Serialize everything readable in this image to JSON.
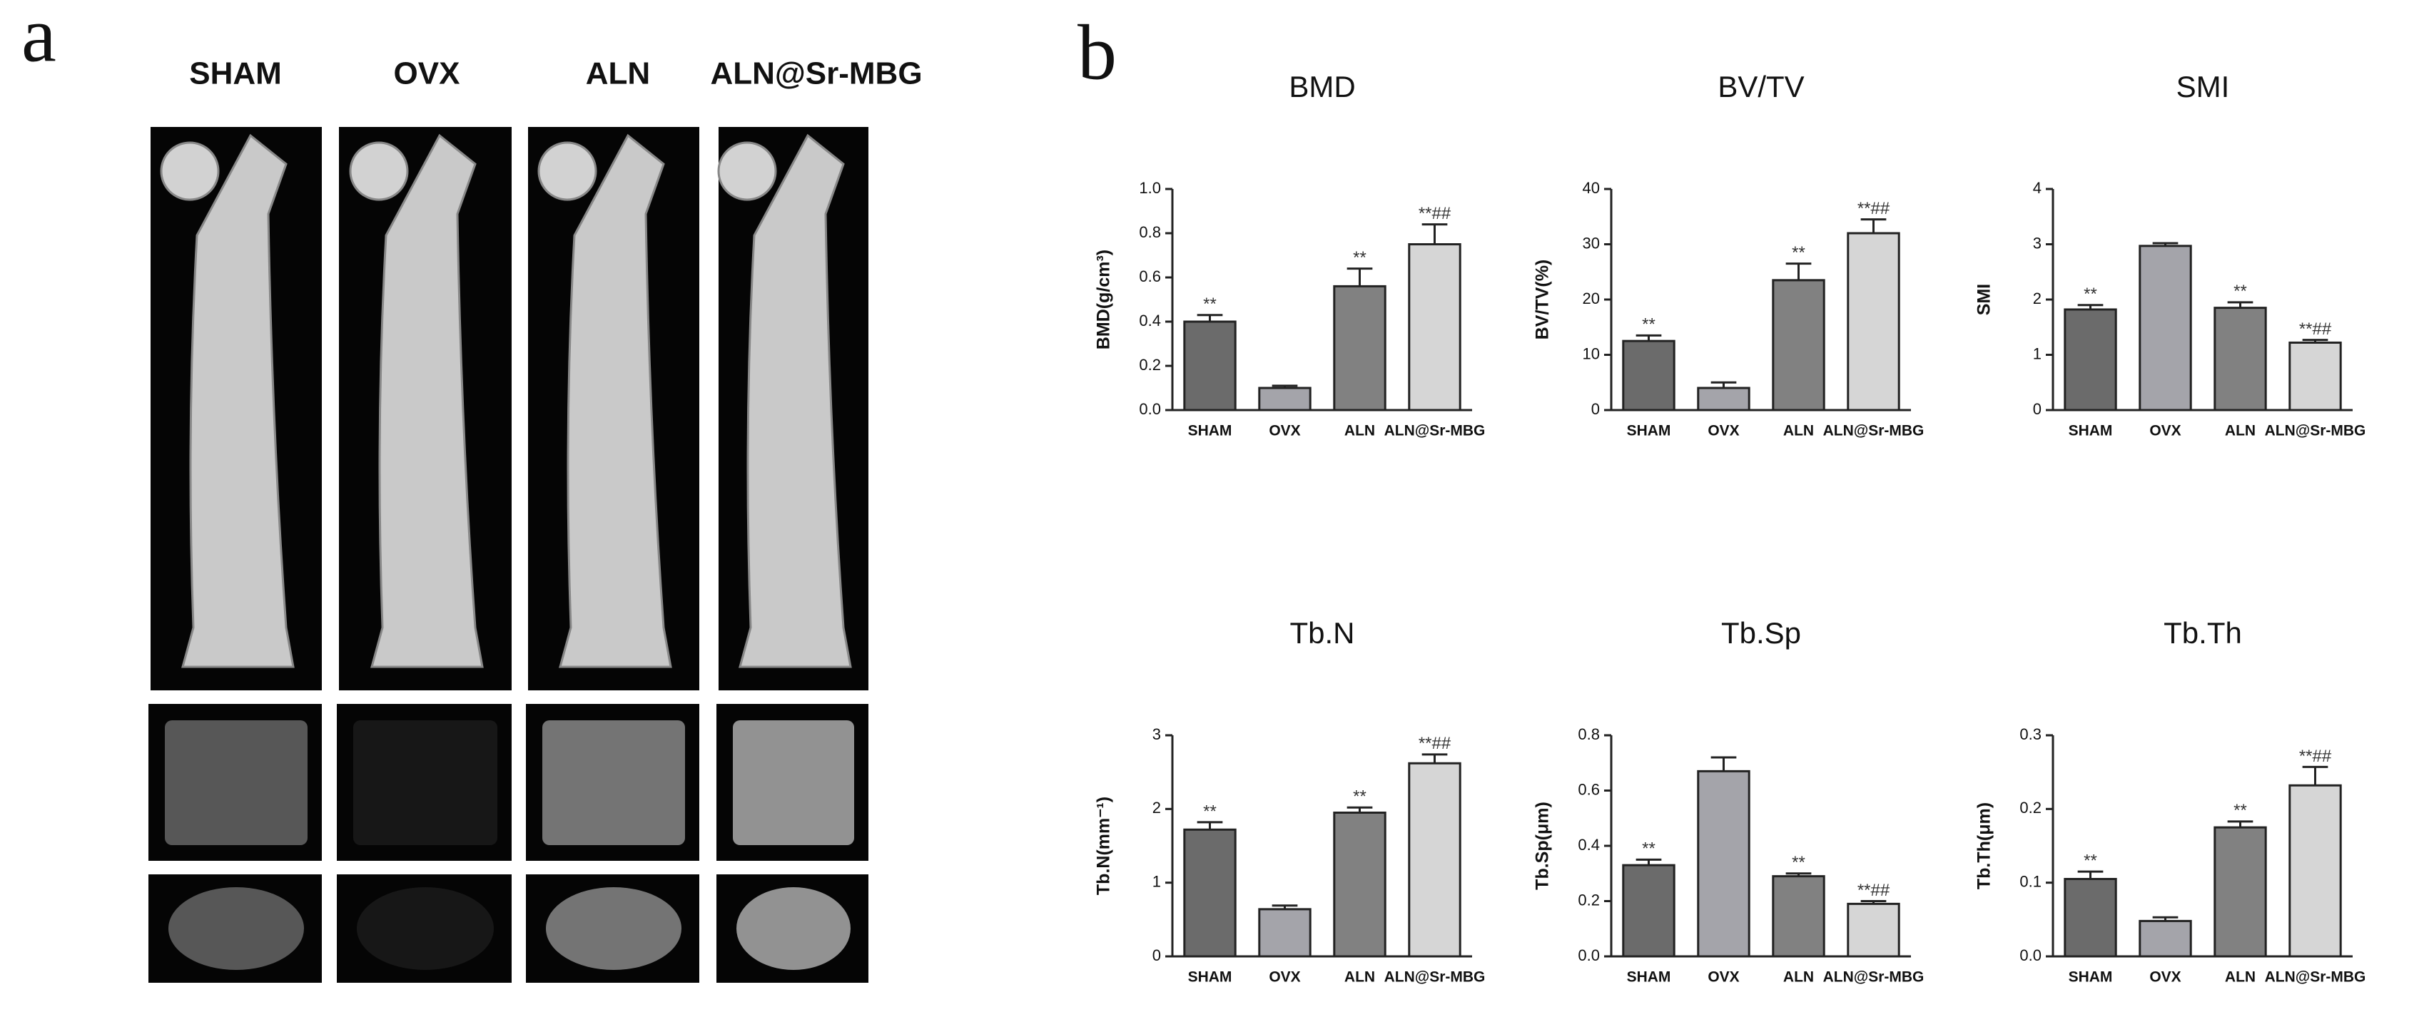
{
  "panel_labels": [
    "a",
    "b"
  ],
  "image_headers": [
    "SHAM",
    "OVX",
    "ALN",
    "ALN@Sr-MBG"
  ],
  "chart_data": [
    {
      "type": "bar",
      "title": "BMD",
      "y_label": "BMD(g/cm³)",
      "categories": [
        "SHAM",
        "OVX",
        "ALN",
        "ALN@Sr-MBG"
      ],
      "values": [
        0.4,
        0.1,
        0.56,
        0.75
      ],
      "errors": [
        0.03,
        0.01,
        0.08,
        0.09
      ],
      "annotations": [
        "**",
        null,
        "**",
        "**##"
      ],
      "colors": [
        "#6b6b6b",
        "#a4a4aa",
        "#818181",
        "#d6d6d6"
      ],
      "ylim": [
        0,
        1.0
      ],
      "yticks": [
        {
          "value": 0,
          "label": "0.0"
        },
        0.2,
        0.4,
        0.6,
        0.8,
        {
          "value": 1.0,
          "label": "1.0"
        }
      ]
    },
    {
      "type": "bar",
      "title": "BV/TV",
      "y_label": "BV/TV(%)",
      "categories": [
        "SHAM",
        "OVX",
        "ALN",
        "ALN@Sr-MBG"
      ],
      "values": [
        12.5,
        4,
        23.5,
        32
      ],
      "errors": [
        1,
        1,
        3,
        2.5
      ],
      "annotations": [
        "**",
        null,
        "**",
        "**##"
      ],
      "colors": [
        "#6b6b6b",
        "#a4a4aa",
        "#818181",
        "#d6d6d6"
      ],
      "ylim": [
        0,
        40
      ],
      "yticks": [
        0,
        10,
        20,
        30,
        40
      ]
    },
    {
      "type": "bar",
      "title": "SMI",
      "y_label": "SMI",
      "categories": [
        "SHAM",
        "OVX",
        "ALN",
        "ALN@Sr-MBG"
      ],
      "values": [
        1.82,
        2.97,
        1.85,
        1.22
      ],
      "errors": [
        0.08,
        0.05,
        0.1,
        0.05
      ],
      "annotations": [
        "**",
        null,
        "**",
        "**##"
      ],
      "colors": [
        "#6b6b6b",
        "#a4a4aa",
        "#818181",
        "#d6d6d6"
      ],
      "ylim": [
        0,
        4
      ],
      "yticks": [
        0,
        1,
        2,
        3,
        4
      ]
    },
    {
      "type": "bar",
      "title": "Tb.N",
      "y_label": "Tb.N(mm⁻¹)",
      "categories": [
        "SHAM",
        "OVX",
        "ALN",
        "ALN@Sr-MBG"
      ],
      "values": [
        1.72,
        0.64,
        1.95,
        2.62
      ],
      "errors": [
        0.1,
        0.05,
        0.07,
        0.12
      ],
      "annotations": [
        "**",
        null,
        "**",
        "**##"
      ],
      "colors": [
        "#6b6b6b",
        "#a4a4aa",
        "#818181",
        "#d6d6d6"
      ],
      "ylim": [
        0,
        3
      ],
      "yticks": [
        0,
        1,
        2,
        3
      ]
    },
    {
      "type": "bar",
      "title": "Tb.Sp",
      "y_label": "Tb.Sp(μm)",
      "categories": [
        "SHAM",
        "OVX",
        "ALN",
        "ALN@Sr-MBG"
      ],
      "values": [
        0.33,
        0.67,
        0.29,
        0.19
      ],
      "errors": [
        0.02,
        0.05,
        0.01,
        0.01
      ],
      "annotations": [
        "**",
        null,
        "**",
        "**##"
      ],
      "colors": [
        "#6b6b6b",
        "#a4a4aa",
        "#818181",
        "#d6d6d6"
      ],
      "ylim": [
        0,
        0.8
      ],
      "yticks": [
        {
          "value": 0,
          "label": "0.0"
        },
        0.2,
        0.4,
        0.6,
        0.8
      ]
    },
    {
      "type": "bar",
      "title": "Tb.Th",
      "y_label": "Tb.Th(μm)",
      "categories": [
        "SHAM",
        "OVX",
        "ALN",
        "ALN@Sr-MBG"
      ],
      "values": [
        0.105,
        0.048,
        0.175,
        0.232
      ],
      "errors": [
        0.01,
        0.005,
        0.008,
        0.025
      ],
      "annotations": [
        "**",
        null,
        "**",
        "**##"
      ],
      "colors": [
        "#6b6b6b",
        "#a4a4aa",
        "#818181",
        "#d6d6d6"
      ],
      "ylim": [
        0,
        0.3
      ],
      "yticks": [
        {
          "value": 0,
          "label": "0.0"
        },
        0.1,
        0.2,
        0.3
      ]
    }
  ]
}
